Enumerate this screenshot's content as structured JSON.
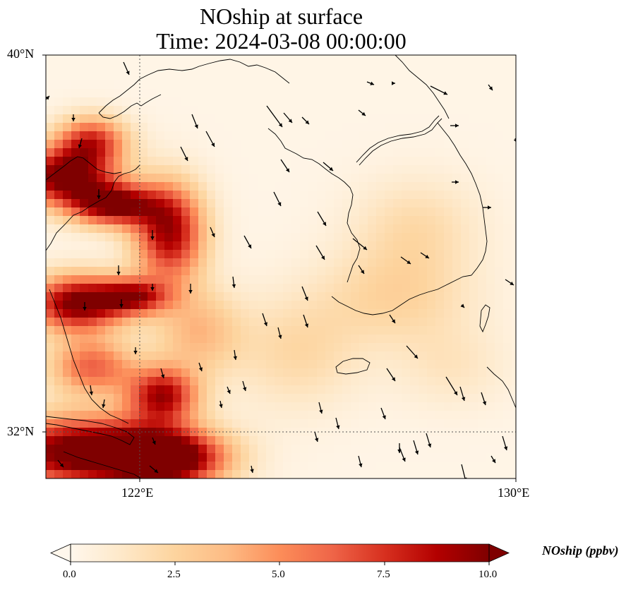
{
  "figure": {
    "title_line1": "NOship at surface",
    "title_line2": "Time: 2024-03-08 00:00:00"
  },
  "map": {
    "lat_range": [
      31.2,
      40
    ],
    "lon_range": [
      120,
      130
    ],
    "lat_tick_labels": [
      "40°N",
      "32°N"
    ],
    "lon_tick_labels": [
      "122°E",
      "130°E"
    ],
    "gridline_lat": 32,
    "gridline_lon": 122,
    "features": [
      "coastlines",
      "wind-vectors",
      "gridlines"
    ]
  },
  "colorbar": {
    "label": "NOship (ppbv)",
    "ticks": [
      "0.0",
      "2.5",
      "5.0",
      "7.5",
      "10.0"
    ],
    "range": [
      0,
      10
    ],
    "extend": "both",
    "colormap": "OrRd",
    "colors": [
      "#fff7ec",
      "#fee8c8",
      "#fdd49e",
      "#fdbb84",
      "#fc8d59",
      "#ef6548",
      "#d7301f",
      "#b30000",
      "#7f0000"
    ]
  }
}
